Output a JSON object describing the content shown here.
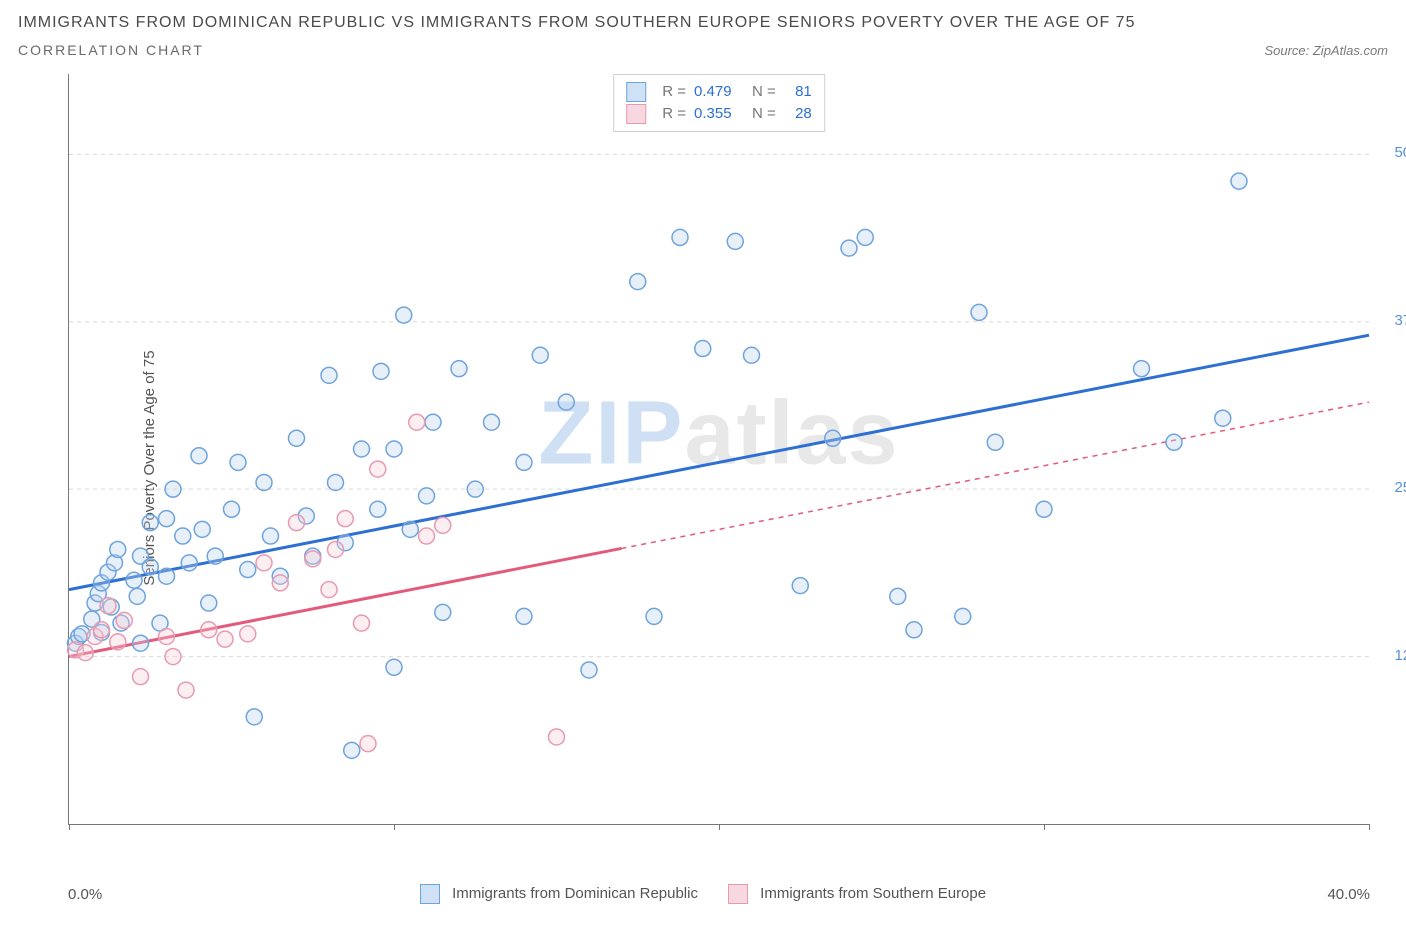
{
  "title": "IMMIGRANTS FROM DOMINICAN REPUBLIC VS IMMIGRANTS FROM SOUTHERN EUROPE SENIORS POVERTY OVER THE AGE OF 75",
  "subtitle": "CORRELATION CHART",
  "source": "Source: ZipAtlas.com",
  "ylabel": "Seniors Poverty Over the Age of 75",
  "watermark_a": "ZIP",
  "watermark_b": "atlas",
  "chart": {
    "type": "scatter",
    "xlim": [
      0,
      40
    ],
    "ylim": [
      0,
      56
    ],
    "x_ticks": [
      0,
      10,
      20,
      30,
      40
    ],
    "x_tick_labels": [
      "0.0%",
      "",
      "",
      "",
      "40.0%"
    ],
    "y_gridlines": [
      12.5,
      25,
      37.5,
      50
    ],
    "y_tick_labels": {
      "12.5": "12.5%",
      "25": "25.0%",
      "37.5": "37.5%",
      "50": "50.0%"
    },
    "background_color": "#ffffff",
    "grid_color": "#d8d8d8",
    "axis_color": "#777777",
    "marker_radius": 8,
    "series": [
      {
        "name": "Immigrants from Dominican Republic",
        "color_stroke": "#6fa3de",
        "color_fill": "#b9d3ef",
        "swatch_border": "#6fa3de",
        "swatch_fill": "#cfe1f4",
        "R": "0.479",
        "N": "81",
        "trend": {
          "x1": 0,
          "y1": 17.5,
          "x2": 40,
          "y2": 36.5,
          "solid_until_x": 40,
          "color": "#2d6fd2"
        },
        "points": [
          [
            0.2,
            13.5
          ],
          [
            0.3,
            14.0
          ],
          [
            0.4,
            14.2
          ],
          [
            0.7,
            15.3
          ],
          [
            0.8,
            16.5
          ],
          [
            0.9,
            17.2
          ],
          [
            1.0,
            18.0
          ],
          [
            1.0,
            14.3
          ],
          [
            1.2,
            18.8
          ],
          [
            1.3,
            16.2
          ],
          [
            1.4,
            19.5
          ],
          [
            1.5,
            20.5
          ],
          [
            1.6,
            15.0
          ],
          [
            2.0,
            18.2
          ],
          [
            2.1,
            17.0
          ],
          [
            2.2,
            20.0
          ],
          [
            2.2,
            13.5
          ],
          [
            2.5,
            22.5
          ],
          [
            2.5,
            19.2
          ],
          [
            2.8,
            15.0
          ],
          [
            3.0,
            22.8
          ],
          [
            3.0,
            18.5
          ],
          [
            3.2,
            25.0
          ],
          [
            3.5,
            21.5
          ],
          [
            3.7,
            19.5
          ],
          [
            4.0,
            27.5
          ],
          [
            4.1,
            22.0
          ],
          [
            4.3,
            16.5
          ],
          [
            4.5,
            20.0
          ],
          [
            5.0,
            23.5
          ],
          [
            5.2,
            27.0
          ],
          [
            5.5,
            19.0
          ],
          [
            5.7,
            8.0
          ],
          [
            6.0,
            25.5
          ],
          [
            6.2,
            21.5
          ],
          [
            6.5,
            18.5
          ],
          [
            7.0,
            28.8
          ],
          [
            7.3,
            23.0
          ],
          [
            7.5,
            20.0
          ],
          [
            8.0,
            33.5
          ],
          [
            8.2,
            25.5
          ],
          [
            8.5,
            21.0
          ],
          [
            8.7,
            5.5
          ],
          [
            9.0,
            28.0
          ],
          [
            9.5,
            23.5
          ],
          [
            9.6,
            33.8
          ],
          [
            10.0,
            28.0
          ],
          [
            10.0,
            11.7
          ],
          [
            10.3,
            38.0
          ],
          [
            10.5,
            22.0
          ],
          [
            11.0,
            24.5
          ],
          [
            11.2,
            30.0
          ],
          [
            11.5,
            15.8
          ],
          [
            12.0,
            34.0
          ],
          [
            12.5,
            25.0
          ],
          [
            13.0,
            30.0
          ],
          [
            14.0,
            27.0
          ],
          [
            14.0,
            15.5
          ],
          [
            14.5,
            35.0
          ],
          [
            15.3,
            31.5
          ],
          [
            16.0,
            11.5
          ],
          [
            17.5,
            40.5
          ],
          [
            18.0,
            15.5
          ],
          [
            18.8,
            43.8
          ],
          [
            19.5,
            35.5
          ],
          [
            20.5,
            43.5
          ],
          [
            21.0,
            35.0
          ],
          [
            22.5,
            17.8
          ],
          [
            23.5,
            28.8
          ],
          [
            24.0,
            43.0
          ],
          [
            24.5,
            43.8
          ],
          [
            25.5,
            17.0
          ],
          [
            26.0,
            14.5
          ],
          [
            27.5,
            15.5
          ],
          [
            28.0,
            38.2
          ],
          [
            28.5,
            28.5
          ],
          [
            30.0,
            23.5
          ],
          [
            33.0,
            34.0
          ],
          [
            34.0,
            28.5
          ],
          [
            35.5,
            30.3
          ],
          [
            36.0,
            48.0
          ]
        ]
      },
      {
        "name": "Immigrants from Southern Europe",
        "color_stroke": "#e89ab0",
        "color_fill": "#f5cdd7",
        "swatch_border": "#e89ab0",
        "swatch_fill": "#f7d7e0",
        "R": "0.355",
        "N": "28",
        "trend": {
          "x1": 0,
          "y1": 12.5,
          "x2": 40,
          "y2": 31.5,
          "solid_until_x": 17,
          "color": "#e35a7a"
        },
        "points": [
          [
            0.2,
            13.0
          ],
          [
            0.5,
            12.8
          ],
          [
            0.8,
            14.0
          ],
          [
            1.0,
            14.5
          ],
          [
            1.2,
            16.3
          ],
          [
            1.5,
            13.6
          ],
          [
            1.7,
            15.2
          ],
          [
            2.2,
            11.0
          ],
          [
            3.0,
            14.0
          ],
          [
            3.2,
            12.5
          ],
          [
            3.6,
            10.0
          ],
          [
            4.3,
            14.5
          ],
          [
            4.8,
            13.8
          ],
          [
            5.5,
            14.2
          ],
          [
            6.0,
            19.5
          ],
          [
            6.5,
            18.0
          ],
          [
            7.0,
            22.5
          ],
          [
            7.5,
            19.8
          ],
          [
            8.0,
            17.5
          ],
          [
            8.2,
            20.5
          ],
          [
            8.5,
            22.8
          ],
          [
            9.0,
            15.0
          ],
          [
            9.2,
            6.0
          ],
          [
            9.5,
            26.5
          ],
          [
            10.7,
            30.0
          ],
          [
            11.0,
            21.5
          ],
          [
            11.5,
            22.3
          ],
          [
            15.0,
            6.5
          ]
        ]
      }
    ]
  },
  "bottom_legend": [
    {
      "label": "Immigrants from Dominican Republic",
      "fill": "#cfe1f4",
      "border": "#6fa3de"
    },
    {
      "label": "Immigrants from Southern Europe",
      "fill": "#f7d7e0",
      "border": "#e89ab0"
    }
  ]
}
